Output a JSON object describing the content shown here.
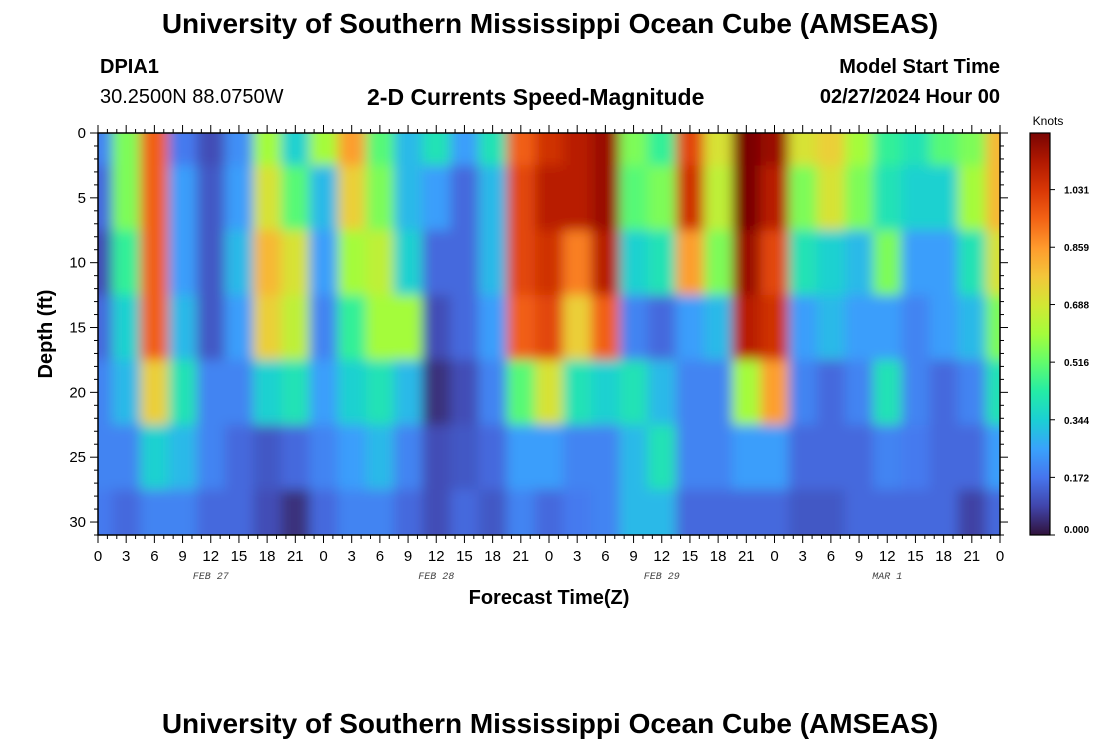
{
  "header": {
    "title": "University of Southern Mississippi Ocean Cube (AMSEAS)",
    "station": "DPIA1",
    "coords": "30.2500N  88.0750W",
    "plot_title": "2-D Currents Speed-Magnitude",
    "model_start_label": "Model Start Time",
    "model_start_value": "02/27/2024 Hour 00"
  },
  "footer": {
    "title": "University of Southern Mississippi Ocean Cube (AMSEAS)"
  },
  "colors": {
    "scale": [
      "#30123b",
      "#4145ab",
      "#4675ed",
      "#39a2fc",
      "#1bcfd4",
      "#24eca6",
      "#61fc6c",
      "#a4fc3b",
      "#d1e834",
      "#f3c63a",
      "#fe9b2d",
      "#f36315",
      "#d93806",
      "#b11901",
      "#7a0402"
    ]
  },
  "chart_data": {
    "type": "heatmap",
    "ylabel": "Depth (ft)",
    "xlabel": "Forecast Time(Z)",
    "ylim": [
      0,
      31
    ],
    "y_ticks": [
      "0",
      "5",
      "10",
      "15",
      "20",
      "25",
      "30"
    ],
    "x_ticks": [
      "0",
      "3",
      "6",
      "9",
      "12",
      "15",
      "18",
      "21",
      "0",
      "3",
      "6",
      "9",
      "12",
      "15",
      "18",
      "21",
      "0",
      "3",
      "6",
      "9",
      "12",
      "15",
      "18",
      "21",
      "0",
      "3",
      "6",
      "9",
      "12",
      "15",
      "18",
      "21",
      "0"
    ],
    "day_labels": [
      "FEB 27",
      "FEB 28",
      "FEB 29",
      "MAR 1"
    ],
    "colorbar": {
      "title": "Knots",
      "range": [
        0,
        1.2
      ],
      "ticks": [
        "1.031",
        "0.859",
        "0.688",
        "0.516",
        "0.344",
        "0.172",
        "0.000"
      ]
    },
    "x_hours": [
      0,
      3,
      6,
      9,
      12,
      15,
      18,
      21,
      24,
      27,
      30,
      33,
      36,
      39,
      42,
      45,
      48,
      51,
      54,
      57,
      60,
      63,
      66,
      69,
      72,
      75,
      78,
      81,
      84,
      87,
      90,
      93,
      96
    ],
    "depths_ft": [
      0,
      5,
      10,
      15,
      20,
      25,
      30
    ],
    "values_knots": [
      [
        0.2,
        0.55,
        0.95,
        0.18,
        0.1,
        0.22,
        0.6,
        0.35,
        0.6,
        0.85,
        0.5,
        0.3,
        0.4,
        0.25,
        0.4,
        0.95,
        1.05,
        1.1,
        1.15,
        0.55,
        0.45,
        1.0,
        0.7,
        1.2,
        1.15,
        0.7,
        0.75,
        0.6,
        0.45,
        0.4,
        0.5,
        0.55,
        0.8
      ],
      [
        0.15,
        0.55,
        0.95,
        0.25,
        0.12,
        0.25,
        0.7,
        0.5,
        0.3,
        0.75,
        0.55,
        0.3,
        0.25,
        0.15,
        0.3,
        1.0,
        1.1,
        1.1,
        1.15,
        0.5,
        0.55,
        1.05,
        0.65,
        1.2,
        1.1,
        0.55,
        0.7,
        0.55,
        0.4,
        0.35,
        0.35,
        0.6,
        0.8
      ],
      [
        0.1,
        0.45,
        0.95,
        0.25,
        0.12,
        0.3,
        0.8,
        0.7,
        0.25,
        0.6,
        0.65,
        0.35,
        0.15,
        0.15,
        0.3,
        1.0,
        1.05,
        0.9,
        1.1,
        0.35,
        0.4,
        0.85,
        0.55,
        1.15,
        1.0,
        0.4,
        0.35,
        0.3,
        0.55,
        0.25,
        0.25,
        0.4,
        0.7
      ],
      [
        0.15,
        0.35,
        0.95,
        0.3,
        0.12,
        0.25,
        0.75,
        0.65,
        0.2,
        0.45,
        0.6,
        0.6,
        0.1,
        0.15,
        0.25,
        0.95,
        1.0,
        0.75,
        0.95,
        0.2,
        0.15,
        0.25,
        0.3,
        1.1,
        1.05,
        0.25,
        0.3,
        0.25,
        0.25,
        0.2,
        0.25,
        0.3,
        0.55
      ],
      [
        0.2,
        0.3,
        0.75,
        0.4,
        0.2,
        0.2,
        0.35,
        0.4,
        0.25,
        0.35,
        0.4,
        0.3,
        0.05,
        0.1,
        0.2,
        0.5,
        0.7,
        0.4,
        0.35,
        0.4,
        0.3,
        0.2,
        0.2,
        0.6,
        0.85,
        0.2,
        0.15,
        0.2,
        0.4,
        0.2,
        0.15,
        0.2,
        0.4
      ],
      [
        0.2,
        0.2,
        0.35,
        0.3,
        0.2,
        0.15,
        0.12,
        0.15,
        0.2,
        0.25,
        0.3,
        0.2,
        0.1,
        0.12,
        0.15,
        0.25,
        0.25,
        0.2,
        0.2,
        0.3,
        0.4,
        0.2,
        0.2,
        0.25,
        0.25,
        0.15,
        0.15,
        0.15,
        0.2,
        0.18,
        0.15,
        0.15,
        0.25
      ],
      [
        0.18,
        0.15,
        0.2,
        0.2,
        0.15,
        0.15,
        0.1,
        0.05,
        0.15,
        0.2,
        0.2,
        0.15,
        0.1,
        0.15,
        0.12,
        0.2,
        0.15,
        0.18,
        0.2,
        0.3,
        0.3,
        0.15,
        0.15,
        0.15,
        0.15,
        0.12,
        0.12,
        0.15,
        0.15,
        0.15,
        0.15,
        0.08,
        0.15
      ]
    ]
  }
}
